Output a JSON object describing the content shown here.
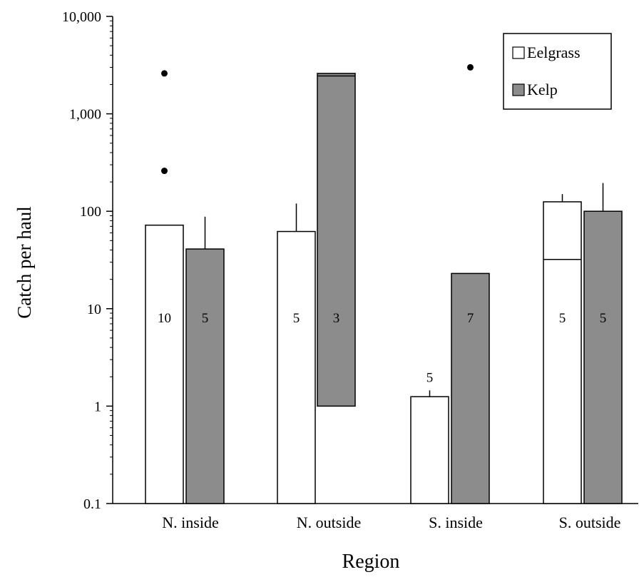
{
  "chart_data": {
    "type": "bar",
    "title": "",
    "xlabel": "Region",
    "ylabel": "Catch per haul",
    "y_scale": "log",
    "ylim": [
      0.1,
      10000
    ],
    "y_ticks": [
      {
        "value": 0.1,
        "label": "0.1"
      },
      {
        "value": 1,
        "label": "1"
      },
      {
        "value": 10,
        "label": "10"
      },
      {
        "value": 100,
        "label": "100"
      },
      {
        "value": 1000,
        "label": "1,000"
      },
      {
        "value": 10000,
        "label": "10,000"
      }
    ],
    "categories": [
      "N. inside",
      "N. outside",
      "S. inside",
      "S. outside"
    ],
    "grid": false,
    "legend_position": "top-right",
    "series": [
      {
        "name": "Eelgrass",
        "color": "#ffffff",
        "values": [
          72,
          62,
          1.25,
          125
        ],
        "error_upper": [
          null,
          120,
          1.45,
          150
        ],
        "n_labels": [
          "10",
          "5",
          "5",
          "5"
        ],
        "inner_line": [
          null,
          null,
          null,
          32
        ],
        "outliers": [
          [
            2600,
            260
          ],
          [],
          [],
          []
        ]
      },
      {
        "name": "Kelp",
        "color": "#8c8c8c",
        "values": [
          41,
          2600,
          23,
          100
        ],
        "bar_bottom": [
          null,
          1,
          null,
          null
        ],
        "error_upper": [
          88,
          null,
          null,
          195
        ],
        "n_labels": [
          "5",
          "3",
          "7",
          "5"
        ],
        "inner_line": [
          null,
          2450,
          null,
          null
        ],
        "outliers": [
          [],
          [],
          [
            3000
          ],
          []
        ]
      }
    ]
  }
}
